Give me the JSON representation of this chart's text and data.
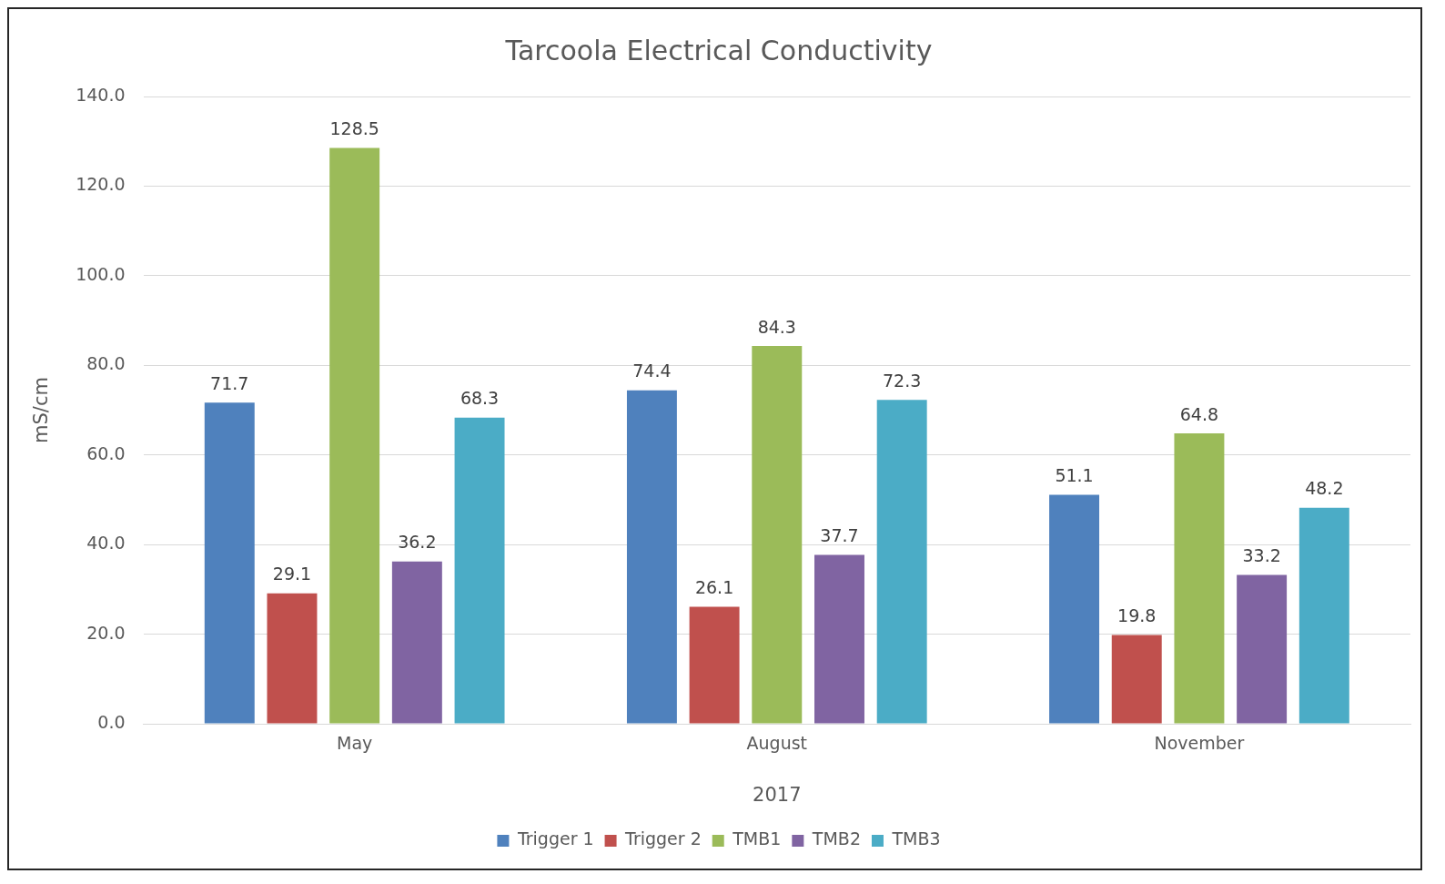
{
  "chart_data": {
    "type": "bar",
    "title": "Tarcoola Electrical Conductivity",
    "xlabel": "2017",
    "ylabel": "mS/cm",
    "categories": [
      "May",
      "August",
      "November"
    ],
    "series": [
      {
        "name": "Trigger 1",
        "color": "#4f81bd",
        "values": [
          71.7,
          74.4,
          51.1
        ]
      },
      {
        "name": "Trigger 2",
        "color": "#c0504d",
        "values": [
          29.1,
          26.1,
          19.8
        ]
      },
      {
        "name": "TMB1",
        "color": "#9bbb59",
        "values": [
          128.5,
          84.3,
          64.8
        ]
      },
      {
        "name": "TMB2",
        "color": "#8064a2",
        "values": [
          36.2,
          37.7,
          33.2
        ]
      },
      {
        "name": "TMB3",
        "color": "#4bacc6",
        "values": [
          68.3,
          72.3,
          48.2
        ]
      }
    ],
    "ylim": [
      0,
      140
    ],
    "yticks": [
      {
        "value": 0,
        "label": "0.0"
      },
      {
        "value": 20,
        "label": "20.0"
      },
      {
        "value": 40,
        "label": "40.0"
      },
      {
        "value": 60,
        "label": "60.0"
      },
      {
        "value": 80,
        "label": "80.0"
      },
      {
        "value": 100,
        "label": "100.0"
      },
      {
        "value": 120,
        "label": "120.0"
      },
      {
        "value": 140,
        "label": "140.0"
      }
    ],
    "grid": "y",
    "legend": "bottom",
    "data_labels": true
  }
}
